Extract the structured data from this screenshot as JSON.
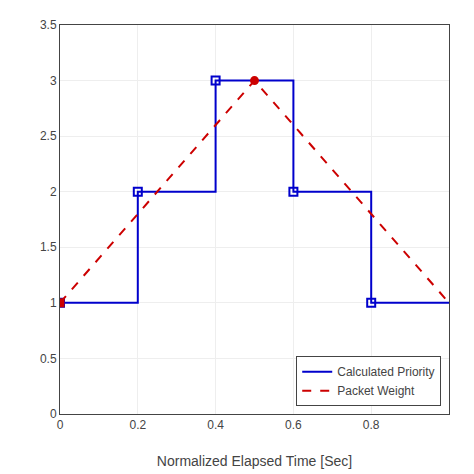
{
  "chart_data": {
    "type": "line",
    "xlabel": "Normalized Elapsed Time [Sec]",
    "series": [
      {
        "name": "Calculated Priority",
        "color": "#0000CC",
        "line_style": "solid",
        "x": [
          0,
          0.2,
          0.2,
          0.4,
          0.4,
          0.6,
          0.6,
          0.8,
          0.8,
          1.0
        ],
        "values": [
          1,
          1,
          2,
          2,
          3,
          3,
          2,
          2,
          1,
          1
        ]
      },
      {
        "type": "scatter",
        "color": "#0000CC",
        "marker": "square-open",
        "x": [
          0,
          0.2,
          0.4,
          0.6,
          0.8
        ],
        "values": [
          1,
          2,
          3,
          2,
          1
        ]
      },
      {
        "name": "Packet Weight",
        "color": "#CC0000",
        "line_style": "dashed",
        "x": [
          0,
          0.5,
          1.0
        ],
        "values": [
          1,
          3,
          1
        ]
      },
      {
        "type": "scatter",
        "color": "#CC0000",
        "marker": "circle",
        "x": [
          0.5
        ],
        "values": [
          3.0
        ]
      },
      {
        "type": "scatter",
        "color": "#CC0000",
        "marker": "square",
        "x": [
          0
        ],
        "values": [
          1
        ]
      }
    ],
    "xlim": [
      0,
      1.0
    ],
    "ylim": [
      0,
      3.5
    ],
    "xticks": [
      0,
      0.2,
      0.4,
      0.6,
      0.8
    ],
    "yticks": [
      0,
      0.5,
      1,
      1.5,
      2,
      2.5,
      3,
      3.5
    ],
    "grid": true,
    "legend": "lower right"
  }
}
